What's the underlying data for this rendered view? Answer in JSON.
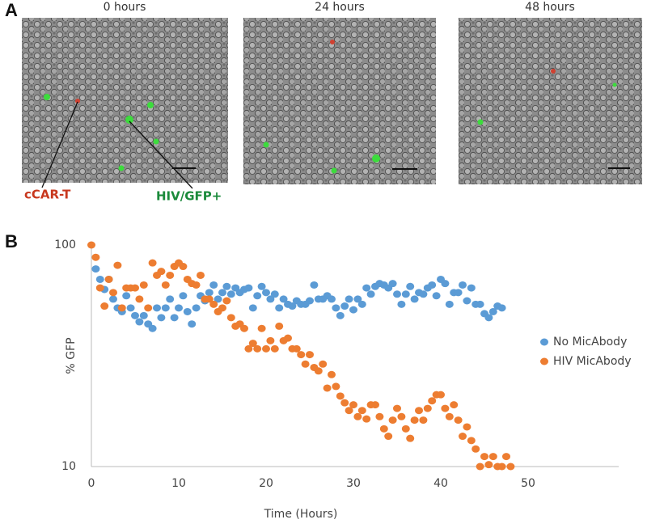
{
  "panel_a": {
    "label": "A",
    "images": [
      {
        "label": "0 hours"
      },
      {
        "label": "24 hours"
      },
      {
        "label": "48 hours"
      }
    ],
    "annotations": [
      "cCAR-T",
      "HIV/GFP+"
    ]
  },
  "chart_data": {
    "type": "scatter",
    "panel_label": "B",
    "x_label": "Time (Hours)",
    "y_label": "% GFP",
    "xlim": [
      0,
      60
    ],
    "xticks": [
      0,
      10,
      20,
      30,
      40,
      50
    ],
    "ylim": [
      10,
      100
    ],
    "yticks": [
      10,
      100
    ],
    "log_y": true,
    "grid": false,
    "legend": "right",
    "series": [
      {
        "name": "No MicAbody",
        "color": "#5b9bd5",
        "x": [
          0.5,
          1,
          1.5,
          2,
          2.5,
          3,
          3.5,
          4,
          4.5,
          5,
          5.5,
          6,
          6.5,
          7,
          7.5,
          8,
          8.5,
          9,
          9.5,
          10,
          10.5,
          11,
          11.5,
          12,
          12.5,
          13,
          13.5,
          14,
          14.5,
          15,
          15.5,
          16,
          16.5,
          17,
          17.5,
          18,
          18.5,
          19,
          19.5,
          20,
          20.5,
          21,
          21.5,
          22,
          22.5,
          23,
          23.5,
          24,
          24.5,
          25,
          25.5,
          26,
          26.5,
          27,
          27.5,
          28,
          28.5,
          29,
          29.5,
          30,
          30.5,
          31,
          31.5,
          32,
          32.5,
          33,
          33.5,
          34,
          34.5,
          35,
          35.5,
          36,
          36.5,
          37,
          37.5,
          38,
          38.5,
          39,
          39.5,
          40,
          40.5,
          41,
          41.5,
          42,
          42.5,
          43,
          43.5,
          44,
          44.5,
          45,
          45.5,
          46,
          46.5,
          47
        ],
        "values": [
          78,
          70,
          63,
          70,
          57,
          52,
          50,
          59,
          52,
          48,
          45,
          48,
          44,
          42,
          52,
          47,
          52,
          57,
          47,
          52,
          59,
          50,
          44,
          52,
          59,
          56,
          61,
          66,
          57,
          61,
          65,
          60,
          64,
          61,
          63,
          64,
          52,
          59,
          65,
          61,
          57,
          60,
          52,
          57,
          54,
          53,
          56,
          54,
          54,
          56,
          66,
          57,
          57,
          59,
          57,
          52,
          48,
          53,
          57,
          51,
          57,
          54,
          64,
          60,
          65,
          67,
          66,
          64,
          67,
          60,
          54,
          60,
          65,
          57,
          61,
          60,
          64,
          66,
          59,
          70,
          67,
          54,
          61,
          61,
          66,
          56,
          64,
          54,
          54,
          49,
          47,
          50,
          53,
          52
        ]
      },
      {
        "name": "HIV MicAbody",
        "color": "#ed7d31",
        "x": [
          0,
          0.5,
          1,
          1.5,
          2,
          2.5,
          3,
          3.5,
          4,
          4.5,
          5,
          5.5,
          6,
          6.5,
          7,
          7.5,
          8,
          8.5,
          9,
          9.5,
          10,
          10.5,
          11,
          11.5,
          12,
          12.5,
          13,
          13.5,
          14,
          14.5,
          15,
          15.5,
          16,
          16.5,
          17,
          17.5,
          18,
          18.5,
          19,
          19.5,
          20,
          20.5,
          21,
          21.5,
          22,
          22.5,
          23,
          23.5,
          24,
          24.5,
          25,
          25.5,
          26,
          26.5,
          27,
          27.5,
          28,
          28.5,
          29,
          29.5,
          30,
          30.5,
          31,
          31.5,
          32,
          32.5,
          33,
          33.5,
          34,
          34.5,
          35,
          35.5,
          36,
          36.5,
          37,
          37.5,
          38,
          38.5,
          39,
          39.5,
          40,
          40.5,
          41,
          41.5,
          42,
          42.5,
          43,
          43.5,
          44,
          44.5,
          45,
          45.5,
          46,
          46.5,
          47,
          47.5,
          48
        ],
        "values": [
          100,
          88,
          64,
          53,
          70,
          61,
          81,
          52,
          64,
          64,
          64,
          57,
          66,
          52,
          83,
          73,
          76,
          66,
          73,
          80,
          83,
          80,
          70,
          67,
          66,
          73,
          57,
          57,
          54,
          50,
          52,
          56,
          47,
          43,
          44,
          42,
          34,
          36,
          34,
          42,
          34,
          37,
          34,
          43,
          37,
          38,
          34,
          34,
          32,
          29,
          32,
          28,
          27,
          29,
          22.6,
          26,
          23,
          20.8,
          19.4,
          17.9,
          19,
          16.8,
          17.9,
          16.4,
          19,
          19,
          16.8,
          14.8,
          13.7,
          16.2,
          18.3,
          16.8,
          14.8,
          13.4,
          16.2,
          17.9,
          16.2,
          18.3,
          19.8,
          21.1,
          21.1,
          18.3,
          16.8,
          19,
          16.2,
          13.7,
          15.1,
          13.1,
          12,
          10,
          11.1,
          10.2,
          11.1,
          10,
          10,
          11.1,
          10
        ]
      }
    ]
  }
}
